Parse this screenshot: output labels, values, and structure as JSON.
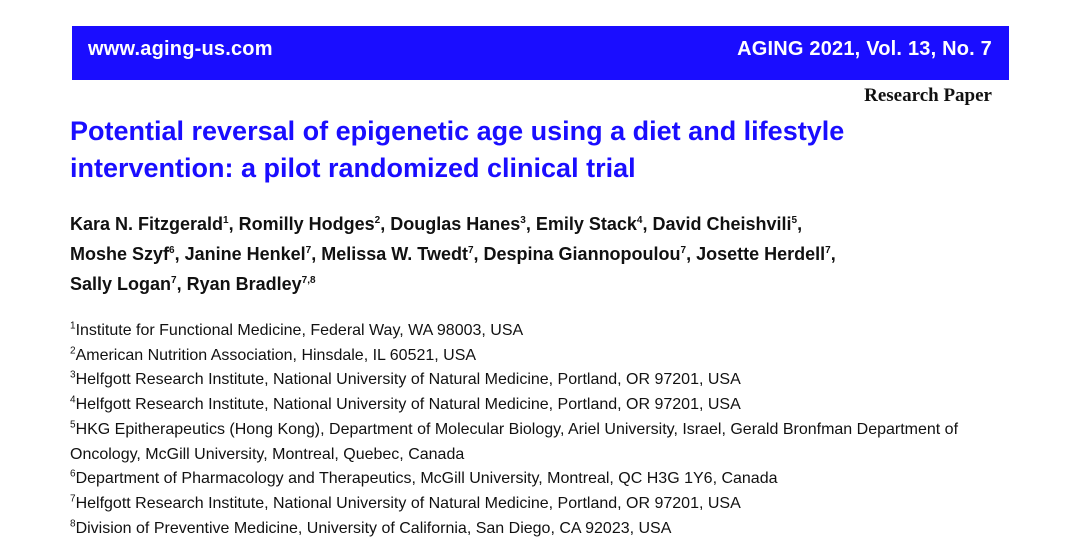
{
  "header": {
    "url": "www.aging-us.com",
    "journal": "AGING 2021, Vol. 13, No. 7",
    "bar_color": "#1a0dff"
  },
  "paper_type": "Research Paper",
  "title": "Potential reversal of epigenetic age using a diet and lifestyle intervention: a pilot randomized clinical trial",
  "title_color": "#1a0dff",
  "authors": [
    {
      "name": "Kara N. Fitzgerald",
      "sup": "1",
      "sep": ", "
    },
    {
      "name": "Romilly Hodges",
      "sup": "2",
      "sep": ", "
    },
    {
      "name": "Douglas Hanes",
      "sup": "3",
      "sep": ", "
    },
    {
      "name": "Emily Stack",
      "sup": "4",
      "sep": ", "
    },
    {
      "name": "David Cheishvili",
      "sup": "5",
      "sep": ", "
    },
    {
      "name": "Moshe Szyf",
      "sup": "6",
      "sep": ", "
    },
    {
      "name": "Janine Henkel",
      "sup": "7",
      "sep": ", "
    },
    {
      "name": "Melissa W. Twedt",
      "sup": "7",
      "sep": ", "
    },
    {
      "name": "Despina Giannopoulou",
      "sup": "7",
      "sep": ", "
    },
    {
      "name": "Josette Herdell",
      "sup": "7",
      "sep": ", "
    },
    {
      "name": "Sally Logan",
      "sup": "7",
      "sep": ", "
    },
    {
      "name": "Ryan Bradley",
      "sup": "7,8",
      "sep": ""
    }
  ],
  "affiliations": [
    {
      "num": "1",
      "text": "Institute for Functional Medicine, Federal Way, WA 98003, USA"
    },
    {
      "num": "2",
      "text": "American Nutrition Association, Hinsdale, IL 60521, USA"
    },
    {
      "num": "3",
      "text": "Helfgott Research Institute, National University of Natural Medicine, Portland, OR 97201, USA"
    },
    {
      "num": "4",
      "text": "Helfgott Research Institute, National University of Natural Medicine, Portland, OR 97201, USA"
    },
    {
      "num": "5",
      "text": "HKG Epitherapeutics (Hong Kong), Department of Molecular Biology, Ariel University, Israel, Gerald Bronfman Department of Oncology, McGill University, Montreal, Quebec, Canada"
    },
    {
      "num": "6",
      "text": "Department of Pharmacology and Therapeutics, McGill University, Montreal, QC H3G 1Y6, Canada"
    },
    {
      "num": "7",
      "text": "Helfgott Research Institute, National University of Natural Medicine, Portland, OR 97201, USA"
    },
    {
      "num": "8",
      "text": "Division of Preventive Medicine, University of California, San Diego, CA 92023, USA"
    }
  ]
}
